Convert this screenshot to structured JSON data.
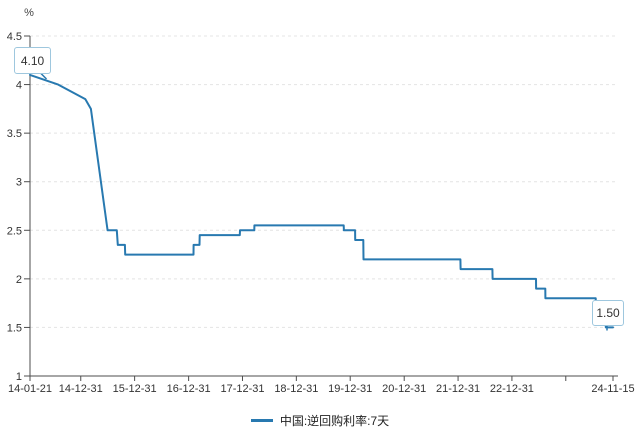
{
  "colors": {
    "background": "#ffffff",
    "series_line": "#2879b0",
    "grid_line": "#e4e4e4",
    "axis_line": "#4d4d4d",
    "tick_text": "#333333",
    "legend_text": "#222222",
    "callout_border": "#9ec7de",
    "callout_text": "#333333",
    "unit_text": "#444444"
  },
  "chart_data": {
    "type": "line",
    "title": "",
    "unit_label": "%",
    "x_domain": [
      "2014-01-21",
      "2024-11-15"
    ],
    "ylim": [
      1,
      4.5
    ],
    "grid": "horizontal-dashed",
    "legend_position": "bottom-center",
    "series": [
      {
        "name": "中国:逆回购利率:7天",
        "color": "#2879b0",
        "points": [
          [
            "2014-01-21",
            4.1
          ],
          [
            "2014-07-31",
            4.0
          ],
          [
            "2015-01-31",
            3.85
          ],
          [
            "2015-03-10",
            3.75
          ],
          [
            "2015-06-26",
            2.55
          ],
          [
            "2015-07-01",
            2.5
          ],
          [
            "2015-09-01",
            2.5
          ],
          [
            "2015-09-08",
            2.35
          ],
          [
            "2015-10-26",
            2.35
          ],
          [
            "2015-10-28",
            2.25
          ],
          [
            "2017-02-02",
            2.25
          ],
          [
            "2017-02-03",
            2.35
          ],
          [
            "2017-03-15",
            2.35
          ],
          [
            "2017-03-16",
            2.45
          ],
          [
            "2017-12-13",
            2.45
          ],
          [
            "2017-12-14",
            2.5
          ],
          [
            "2018-03-21",
            2.5
          ],
          [
            "2018-03-22",
            2.55
          ],
          [
            "2019-11-17",
            2.55
          ],
          [
            "2019-11-18",
            2.5
          ],
          [
            "2020-02-02",
            2.5
          ],
          [
            "2020-02-03",
            2.4
          ],
          [
            "2020-03-29",
            2.4
          ],
          [
            "2020-03-30",
            2.2
          ],
          [
            "2022-01-16",
            2.2
          ],
          [
            "2022-01-17",
            2.1
          ],
          [
            "2022-08-21",
            2.1
          ],
          [
            "2022-08-22",
            2.0
          ],
          [
            "2023-06-12",
            2.0
          ],
          [
            "2023-06-13",
            1.9
          ],
          [
            "2023-08-14",
            1.9
          ],
          [
            "2023-08-15",
            1.8
          ],
          [
            "2024-07-21",
            1.8
          ],
          [
            "2024-07-22",
            1.7
          ],
          [
            "2024-09-26",
            1.7
          ],
          [
            "2024-09-27",
            1.5
          ],
          [
            "2024-11-15",
            1.5
          ]
        ]
      }
    ],
    "y_ticks": [
      {
        "value": 1,
        "label": "1"
      },
      {
        "value": 1.5,
        "label": "1.5"
      },
      {
        "value": 2,
        "label": "2"
      },
      {
        "value": 2.5,
        "label": "2.5"
      },
      {
        "value": 3,
        "label": "3"
      },
      {
        "value": 3.5,
        "label": "3.5"
      },
      {
        "value": 4,
        "label": "4"
      },
      {
        "value": 4.5,
        "label": "4.5"
      }
    ],
    "x_ticks": [
      {
        "date": "2014-01-21",
        "label": "14-01-21"
      },
      {
        "date": "2014-12-31",
        "label": "14-12-31"
      },
      {
        "date": "2015-12-31",
        "label": "15-12-31"
      },
      {
        "date": "2016-12-31",
        "label": "16-12-31"
      },
      {
        "date": "2017-12-31",
        "label": "17-12-31"
      },
      {
        "date": "2018-12-31",
        "label": "18-12-31"
      },
      {
        "date": "2019-12-31",
        "label": "19-12-31"
      },
      {
        "date": "2020-12-31",
        "label": "20-12-31"
      },
      {
        "date": "2021-12-31",
        "label": "21-12-31"
      },
      {
        "date": "2022-12-31",
        "label": "22-12-31"
      },
      {
        "date": "2023-12-31",
        "label": ""
      },
      {
        "date": "2024-11-15",
        "label": "24-11-15"
      }
    ],
    "annotations": [
      {
        "text": "4.10",
        "date": "2014-01-21",
        "value": 4.1
      },
      {
        "text": "1.50",
        "date": "2024-11-15",
        "value": 1.5
      }
    ]
  }
}
